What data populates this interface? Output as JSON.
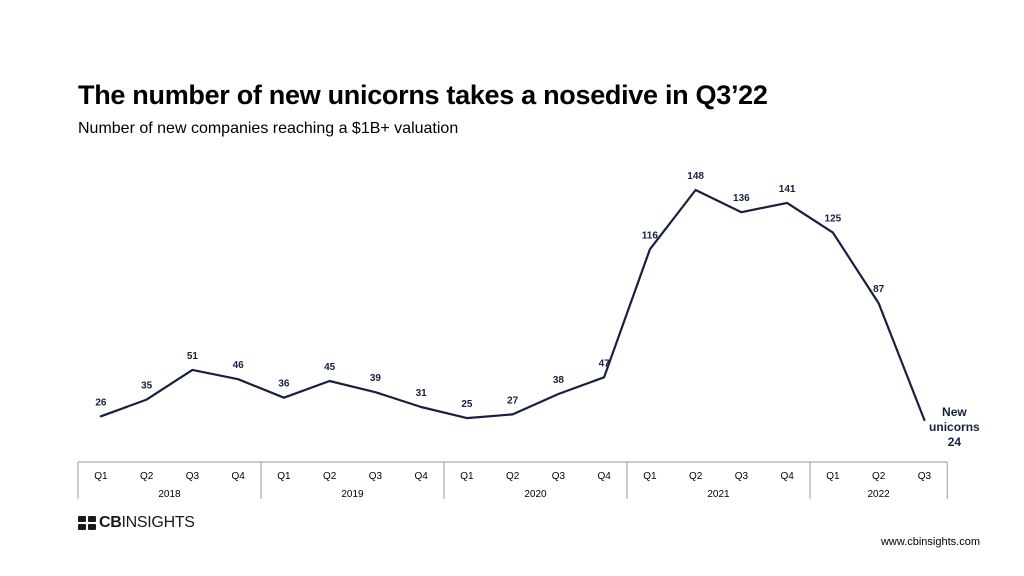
{
  "header": {
    "title": "The number of new unicorns takes a nosedive in Q3’22",
    "subtitle": "Number of new companies reaching a $1B+ valuation"
  },
  "chart_data": {
    "type": "line",
    "title": "The number of new unicorns takes a nosedive in Q3’22",
    "subtitle": "Number of new companies reaching a $1B+ valuation",
    "categories": [
      "Q1",
      "Q2",
      "Q3",
      "Q4",
      "Q1",
      "Q2",
      "Q3",
      "Q4",
      "Q1",
      "Q2",
      "Q3",
      "Q4",
      "Q1",
      "Q2",
      "Q3",
      "Q4",
      "Q1",
      "Q2",
      "Q3"
    ],
    "years": [
      "2018",
      "2019",
      "2020",
      "2021",
      "2022"
    ],
    "series": [
      {
        "name": "New unicorns",
        "values": [
          26,
          35,
          51,
          46,
          36,
          45,
          39,
          31,
          25,
          27,
          38,
          47,
          116,
          148,
          136,
          141,
          125,
          87,
          24
        ]
      }
    ],
    "annotation": {
      "line1": "New",
      "line2": "unicorns",
      "value": "24"
    },
    "ylim": [
      0,
      160
    ],
    "grid": false,
    "legend": "none",
    "line_color": "#16213e"
  },
  "branding": {
    "logo_bold": "CB",
    "logo_light": "INSIGHTS",
    "url": "www.cbinsights.com"
  }
}
